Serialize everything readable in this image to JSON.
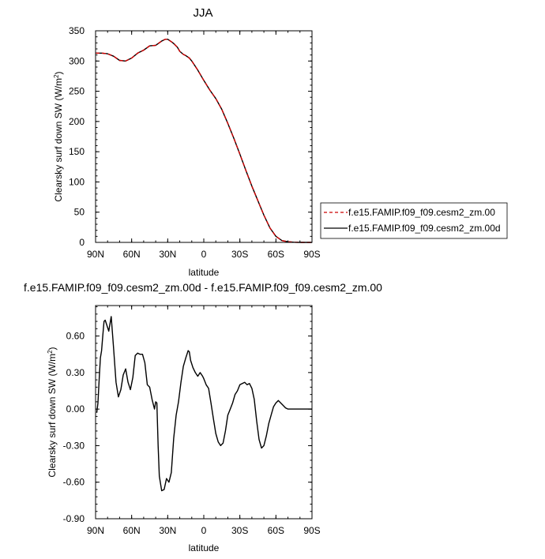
{
  "chart_data": [
    {
      "type": "line",
      "title": "JJA",
      "xlabel": "latitude",
      "ylabel": "Clearsky surf down SW (W/m",
      "ylabel_sup": "2",
      "ylabel_end": ")",
      "xlim": [
        90,
        -90
      ],
      "ylim": [
        0,
        350
      ],
      "x_ticks": [
        {
          "value": 90,
          "label": "90N"
        },
        {
          "value": 60,
          "label": "60N"
        },
        {
          "value": 30,
          "label": "30N"
        },
        {
          "value": 0,
          "label": "0"
        },
        {
          "value": -30,
          "label": "30S"
        },
        {
          "value": -60,
          "label": "60S"
        },
        {
          "value": -90,
          "label": "90S"
        }
      ],
      "y_ticks": [
        {
          "value": 0,
          "label": "0"
        },
        {
          "value": 50,
          "label": "50"
        },
        {
          "value": 100,
          "label": "100"
        },
        {
          "value": 150,
          "label": "150"
        },
        {
          "value": 200,
          "label": "200"
        },
        {
          "value": 250,
          "label": "250"
        },
        {
          "value": 300,
          "label": "300"
        },
        {
          "value": 350,
          "label": "350"
        }
      ],
      "legend_position": "right",
      "series": [
        {
          "name": "f.e15.FAMIP.f09_f09.cesm2_zm.00",
          "color": "#cc0000",
          "dash": "dashed",
          "x": [
            90,
            85,
            80,
            75,
            70,
            65,
            60,
            55,
            50,
            45,
            40,
            35,
            32,
            30,
            27,
            25,
            22,
            20,
            17,
            15,
            12,
            10,
            5,
            0,
            -5,
            -10,
            -15,
            -20,
            -25,
            -30,
            -35,
            -40,
            -45,
            -50,
            -55,
            -60,
            -65,
            -70,
            -75,
            -80,
            -85,
            -90
          ],
          "y": [
            313,
            313,
            312,
            308,
            301,
            300,
            305,
            313,
            318,
            325,
            326,
            333,
            336,
            336,
            332,
            329,
            323,
            316,
            311,
            309,
            305,
            300,
            285,
            268,
            252,
            238,
            220,
            197,
            172,
            146,
            119,
            93,
            69,
            45,
            24,
            10,
            3,
            1,
            0.3,
            0,
            0,
            0
          ]
        },
        {
          "name": "f.e15.FAMIP.f09_f09.cesm2_zm.00d",
          "color": "#000000",
          "dash": "solid",
          "x": [
            90,
            85,
            80,
            75,
            70,
            65,
            60,
            55,
            50,
            45,
            40,
            35,
            32,
            30,
            27,
            25,
            22,
            20,
            17,
            15,
            12,
            10,
            5,
            0,
            -5,
            -10,
            -15,
            -20,
            -25,
            -30,
            -35,
            -40,
            -45,
            -50,
            -55,
            -60,
            -65,
            -70,
            -75,
            -80,
            -85,
            -90
          ],
          "y": [
            313,
            313,
            312,
            308,
            301,
            300,
            305,
            313,
            318,
            325,
            326,
            333,
            336,
            336,
            332,
            329,
            323,
            316,
            311,
            309,
            305,
            300,
            285,
            268,
            252,
            238,
            220,
            197,
            172,
            146,
            119,
            93,
            69,
            45,
            24,
            10,
            3,
            1,
            0.3,
            0,
            0,
            0
          ]
        }
      ]
    },
    {
      "type": "line",
      "title": "f.e15.FAMIP.f09_f09.cesm2_zm.00d - f.e15.FAMIP.f09_f09.cesm2_zm.00",
      "xlabel": "latitude",
      "ylabel": "Clearsky surf down SW (W/m",
      "ylabel_sup": "2",
      "ylabel_end": ")",
      "xlim": [
        90,
        -90
      ],
      "ylim": [
        -0.9,
        0.85
      ],
      "x_ticks": [
        {
          "value": 90,
          "label": "90N"
        },
        {
          "value": 60,
          "label": "60N"
        },
        {
          "value": 30,
          "label": "30N"
        },
        {
          "value": 0,
          "label": "0"
        },
        {
          "value": -30,
          "label": "30S"
        },
        {
          "value": -60,
          "label": "60S"
        },
        {
          "value": -90,
          "label": "90S"
        }
      ],
      "y_ticks": [
        {
          "value": -0.9,
          "label": "-0.90"
        },
        {
          "value": -0.6,
          "label": "-0.60"
        },
        {
          "value": -0.3,
          "label": "-0.30"
        },
        {
          "value": 0,
          "label": "0.00"
        },
        {
          "value": 0.3,
          "label": "0.30"
        },
        {
          "value": 0.6,
          "label": "0.60"
        }
      ],
      "series": [
        {
          "color": "#000000",
          "dash": "solid",
          "x": [
            89,
            88,
            87,
            86,
            85,
            84,
            83,
            82,
            81,
            79,
            77,
            75,
            73,
            71,
            69,
            67,
            65,
            63,
            61,
            59,
            57,
            55,
            53,
            51,
            49,
            47,
            45,
            43,
            41,
            40,
            39,
            38,
            37,
            35,
            33,
            31,
            29,
            27,
            25,
            23,
            21,
            19,
            17,
            15,
            13,
            12,
            11,
            9,
            7,
            5,
            3,
            1,
            0,
            -2,
            -4,
            -6,
            -8,
            -10,
            -12,
            -14,
            -16,
            -18,
            -20,
            -22,
            -24,
            -26,
            -28,
            -30,
            -32,
            -34,
            -36,
            -38,
            -40,
            -42,
            -44,
            -46,
            -48,
            -50,
            -52,
            -54,
            -56,
            -58,
            -60,
            -62,
            -64,
            -66,
            -68,
            -70,
            -72,
            -74,
            -76,
            -78,
            -80,
            -84,
            -88,
            -90
          ],
          "y": [
            -0.03,
            0.05,
            0.25,
            0.42,
            0.48,
            0.6,
            0.72,
            0.73,
            0.7,
            0.64,
            0.76,
            0.5,
            0.22,
            0.1,
            0.16,
            0.28,
            0.33,
            0.22,
            0.16,
            0.26,
            0.44,
            0.46,
            0.45,
            0.45,
            0.38,
            0.2,
            0.18,
            0.08,
            0.0,
            0.06,
            0.05,
            -0.3,
            -0.55,
            -0.67,
            -0.66,
            -0.57,
            -0.6,
            -0.52,
            -0.24,
            -0.05,
            0.06,
            0.22,
            0.35,
            0.42,
            0.48,
            0.47,
            0.4,
            0.34,
            0.3,
            0.27,
            0.3,
            0.27,
            0.25,
            0.2,
            0.17,
            0.05,
            -0.08,
            -0.2,
            -0.27,
            -0.3,
            -0.28,
            -0.18,
            -0.05,
            0.0,
            0.05,
            0.12,
            0.15,
            0.2,
            0.21,
            0.22,
            0.2,
            0.21,
            0.17,
            0.08,
            -0.1,
            -0.25,
            -0.32,
            -0.3,
            -0.22,
            -0.12,
            -0.05,
            0.02,
            0.05,
            0.07,
            0.05,
            0.03,
            0.01,
            0.0,
            0.0,
            0.0,
            0.0,
            0.0,
            0.0,
            0.0,
            0.0,
            0.0
          ]
        }
      ]
    }
  ]
}
